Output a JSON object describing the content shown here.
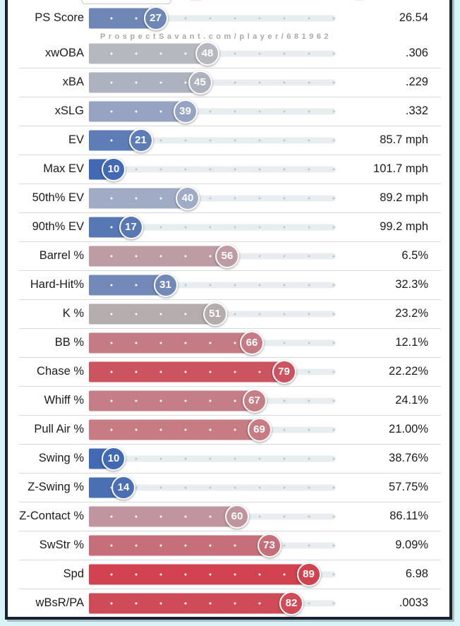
{
  "watermark": "ProspectSavant.com/player/681962",
  "frame": {
    "outer_background": "#d9f4f6",
    "border_color": "#1a2230",
    "panel_background": "#ffffff",
    "separator_color": "#d9d9d9",
    "track_color": "#e8eef0",
    "track_dot_color": "#bcc7c9",
    "fill_dot_color": "#ffffff",
    "watermark_color": "#a9a9a9",
    "text_color": "#1b1b1d"
  },
  "chart_data": {
    "type": "bar",
    "orientation": "horizontal",
    "title": "",
    "xlabel": "",
    "ylabel": "",
    "xlim": [
      0,
      100
    ],
    "grid": false,
    "legend_position": "none",
    "dot_positions": [
      9,
      19,
      29,
      39,
      49,
      59,
      69,
      79,
      89,
      99
    ],
    "categories": [
      "PS Score",
      "xwOBA",
      "xBA",
      "xSLG",
      "EV",
      "Max EV",
      "50th% EV",
      "90th% EV",
      "Barrel %",
      "Hard-Hit%",
      "K %",
      "BB %",
      "Chase %",
      "Whiff %",
      "Pull Air %",
      "Swing %",
      "Z-Swing %",
      "Z-Contact %",
      "SwStr %",
      "Spd",
      "wBsR/PA"
    ],
    "series": [
      {
        "name": "percentile",
        "values": [
          27,
          48,
          45,
          39,
          21,
          10,
          40,
          17,
          56,
          31,
          51,
          66,
          79,
          67,
          69,
          10,
          14,
          60,
          73,
          89,
          82
        ]
      },
      {
        "name": "display_value",
        "values": [
          "26.54",
          ".306",
          ".229",
          ".332",
          "85.7 mph",
          "101.7 mph",
          "89.2 mph",
          "99.2 mph",
          "6.5%",
          "32.3%",
          "23.2%",
          "12.1%",
          "22.22%",
          "24.1%",
          "21.00%",
          "38.76%",
          "57.75%",
          "86.11%",
          "9.09%",
          "6.98",
          ".0033"
        ]
      }
    ],
    "row_colors": [
      "#6e87b5",
      "#b5b8be",
      "#adb2bf",
      "#96a3c3",
      "#5e7db7",
      "#4269b3",
      "#a0abc5",
      "#5778b4",
      "#bd9da3",
      "#7289b8",
      "#b4acad",
      "#c57b83",
      "#cb5460",
      "#c67e86",
      "#c77b83",
      "#4269b3",
      "#4a70b3",
      "#c0959d",
      "#c66f7a",
      "#d2414e",
      "#cf4b57"
    ]
  }
}
